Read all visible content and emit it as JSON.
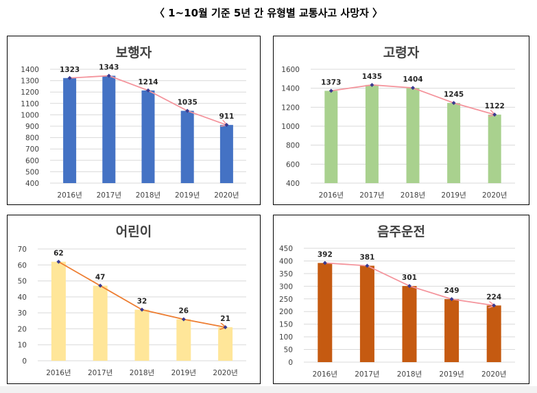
{
  "page": {
    "title": "〈 1~10월 기준 5년 간 유형별 교통사고 사망자 〉"
  },
  "chart_data": [
    {
      "type": "bar",
      "title": "보행자",
      "categories": [
        "2016년",
        "2017년",
        "2018년",
        "2019년",
        "2020년"
      ],
      "values": [
        1323,
        1343,
        1214,
        1035,
        911
      ],
      "ylim": [
        400,
        1400
      ],
      "yticks": [
        400,
        500,
        600,
        700,
        800,
        900,
        1000,
        1100,
        1200,
        1300,
        1400
      ],
      "bar_color": "#4472c4",
      "line_color": "#f4949c",
      "line_start": 0,
      "xlabel": "",
      "ylabel": "",
      "grid": true
    },
    {
      "type": "bar",
      "title": "고령자",
      "categories": [
        "2016년",
        "2017년",
        "2018년",
        "2019년",
        "2020년"
      ],
      "values": [
        1373,
        1435,
        1404,
        1245,
        1122
      ],
      "ylim": [
        400,
        1600
      ],
      "yticks": [
        400,
        600,
        800,
        1000,
        1200,
        1400,
        1600
      ],
      "bar_color": "#a9d18e",
      "line_color": "#f4949c",
      "line_start": 0,
      "xlabel": "",
      "ylabel": "",
      "grid": true
    },
    {
      "type": "bar",
      "title": "어린이",
      "categories": [
        "2016년",
        "2017년",
        "2018년",
        "2019년",
        "2020년"
      ],
      "values": [
        62,
        47,
        32,
        26,
        21
      ],
      "ylim": [
        0,
        70
      ],
      "yticks": [
        0,
        10,
        20,
        30,
        40,
        50,
        60,
        70
      ],
      "bar_color": "#ffe699",
      "line_color": "#ed7d31",
      "line_start": 0,
      "xlabel": "",
      "ylabel": "",
      "grid": true
    },
    {
      "type": "bar",
      "title": "음주운전",
      "categories": [
        "2016년",
        "2017년",
        "2018년",
        "2019년",
        "2020년"
      ],
      "values": [
        392,
        381,
        301,
        249,
        224
      ],
      "ylim": [
        0,
        450
      ],
      "yticks": [
        0,
        50,
        100,
        150,
        200,
        250,
        300,
        350,
        400,
        450
      ],
      "bar_color": "#c55a11",
      "line_color": "#f4949c",
      "line_start": 0,
      "xlabel": "",
      "ylabel": "",
      "grid": true
    }
  ]
}
